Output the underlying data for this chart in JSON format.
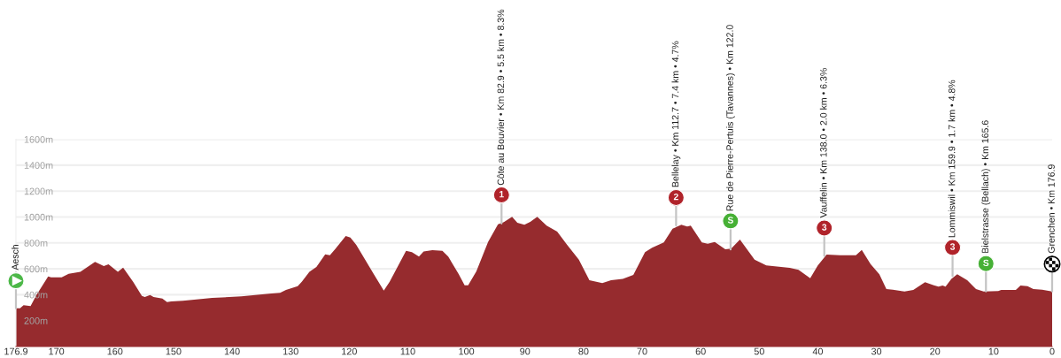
{
  "chart_data": {
    "type": "area",
    "x": [
      176.9,
      176.2,
      175.6,
      174.4,
      173.4,
      171.4,
      170.9,
      169.1,
      167.9,
      165.9,
      163.4,
      161.9,
      161.1,
      159.5,
      158.6,
      156.9,
      155.4,
      154.9,
      154.0,
      153.4,
      151.9,
      151.1,
      150.4,
      148.4,
      143.4,
      138.4,
      133.3,
      131.8,
      130.8,
      128.8,
      128.1,
      126.8,
      125.6,
      124.1,
      123.3,
      122.3,
      120.6,
      119.8,
      118.8,
      115.8,
      114.1,
      113.1,
      110.3,
      109.3,
      108.1,
      107.3,
      105.8,
      104.1,
      103.1,
      101.3,
      100.3,
      99.7,
      98.3,
      96.3,
      94.6,
      93.6,
      92.2,
      91.3,
      90.1,
      89.1,
      87.9,
      86.3,
      84.5,
      82.8,
      80.8,
      79.0,
      76.8,
      75.3,
      73.3,
      71.5,
      69.5,
      68.3,
      66.3,
      64.8,
      63.3,
      62.3,
      61.7,
      59.8,
      58.8,
      57.6,
      55.8,
      54.8,
      53.3,
      50.8,
      48.8,
      44.8,
      43.3,
      41.3,
      40.0,
      38.5,
      36.2,
      33.5,
      32.5,
      31.0,
      29.5,
      28.3,
      27.2,
      25.2,
      23.7,
      21.7,
      20.2,
      19.4,
      18.7,
      18.2,
      17.2,
      16.2,
      14.5,
      13.0,
      11.7,
      9.2,
      8.7,
      6.2,
      5.4,
      4.2,
      3.2,
      1.7,
      0.0
    ],
    "series": [
      {
        "color": "#962b2e",
        "values": [
          296,
          296,
          319,
          312,
          398,
          541,
          534,
          534,
          562,
          576,
          653,
          621,
          635,
          576,
          610,
          500,
          391,
          382,
          398,
          382,
          371,
          343,
          348,
          353,
          375,
          387,
          410,
          414,
          437,
          466,
          500,
          576,
          614,
          712,
          705,
          758,
          853,
          842,
          785,
          558,
          432,
          500,
          739,
          728,
          694,
          733,
          744,
          739,
          694,
          558,
          473,
          473,
          580,
          808,
          944,
          960,
          1001,
          956,
          940,
          962,
          1001,
          933,
          887,
          785,
          671,
          512,
          489,
          512,
          523,
          553,
          728,
          762,
          803,
          910,
          940,
          926,
          933,
          803,
          793,
          808,
          751,
          756,
          826,
          671,
          626,
          608,
          592,
          528,
          626,
          710,
          705,
          705,
          746,
          637,
          558,
          444,
          439,
          425,
          437,
          496,
          473,
          462,
          471,
          462,
          523,
          558,
          512,
          444,
          425,
          428,
          437,
          437,
          471,
          466,
          444,
          439,
          425
        ]
      },
      {
        "type": "scatter",
        "marker": "circle",
        "x": [
          94.0,
          64.2,
          54.9,
          38.9,
          17.0,
          11.3
        ],
        "values": [
          1170,
          1150,
          970,
          915,
          765,
          640
        ],
        "colors": [
          "#b0232a",
          "#b0232a",
          "#46b035",
          "#b0232a",
          "#b0232a",
          "#46b035"
        ]
      }
    ],
    "xlim": [
      176.9,
      0
    ],
    "xticks": [
      176.9,
      170,
      160,
      150,
      140,
      130,
      120,
      110,
      100,
      90,
      80,
      70,
      60,
      50,
      40,
      30,
      20,
      10,
      0
    ],
    "ylim": [
      0,
      1600
    ],
    "yticks": [
      {
        "value": 200,
        "label": "200m"
      },
      {
        "value": 400,
        "label": "400m"
      },
      {
        "value": 600,
        "label": "600m"
      },
      {
        "value": 800,
        "label": "800m"
      },
      {
        "value": 1000,
        "label": "1000m"
      },
      {
        "value": 1200,
        "label": "1200m"
      },
      {
        "value": 1400,
        "label": "1400m"
      },
      {
        "value": 1600,
        "label": "1600m"
      }
    ],
    "grid": "y",
    "annotations": [
      {
        "text": "Aesch",
        "x": 176.9,
        "y": 296
      },
      {
        "text": "Côte au Bouvier • Km 82.9 • 5.5 km • 8.3%",
        "x": 94.0,
        "y": 950
      },
      {
        "text": "Bellelay • Km 112.7 • 7.4 km • 4.7%",
        "x": 64.2,
        "y": 935
      },
      {
        "text": "Rue de Pierre-Pertuis (Tavannes) • Km 122.0",
        "x": 54.9,
        "y": 750
      },
      {
        "text": "Vauffelin • Km 138.0 • 2.0 km • 6.3%",
        "x": 38.9,
        "y": 700
      },
      {
        "text": "Lommiswil • Km 159.9 • 1.7 km • 4.8%",
        "x": 17.0,
        "y": 545
      },
      {
        "text": "Bielstrasse (Bellach) • Km 165.6",
        "x": 11.3,
        "y": 425
      },
      {
        "text": "Grenchen • Km 176.9",
        "x": 0.0,
        "y": 425
      },
      {
        "text": "1",
        "x": 94.0,
        "y": 1170
      },
      {
        "text": "2",
        "x": 64.2,
        "y": 1150
      },
      {
        "text": "S",
        "x": 54.9,
        "y": 970
      },
      {
        "text": "3",
        "x": 38.9,
        "y": 915
      },
      {
        "text": "3",
        "x": 17.0,
        "y": 765
      },
      {
        "text": "S",
        "x": 11.3,
        "y": 640
      }
    ]
  }
}
